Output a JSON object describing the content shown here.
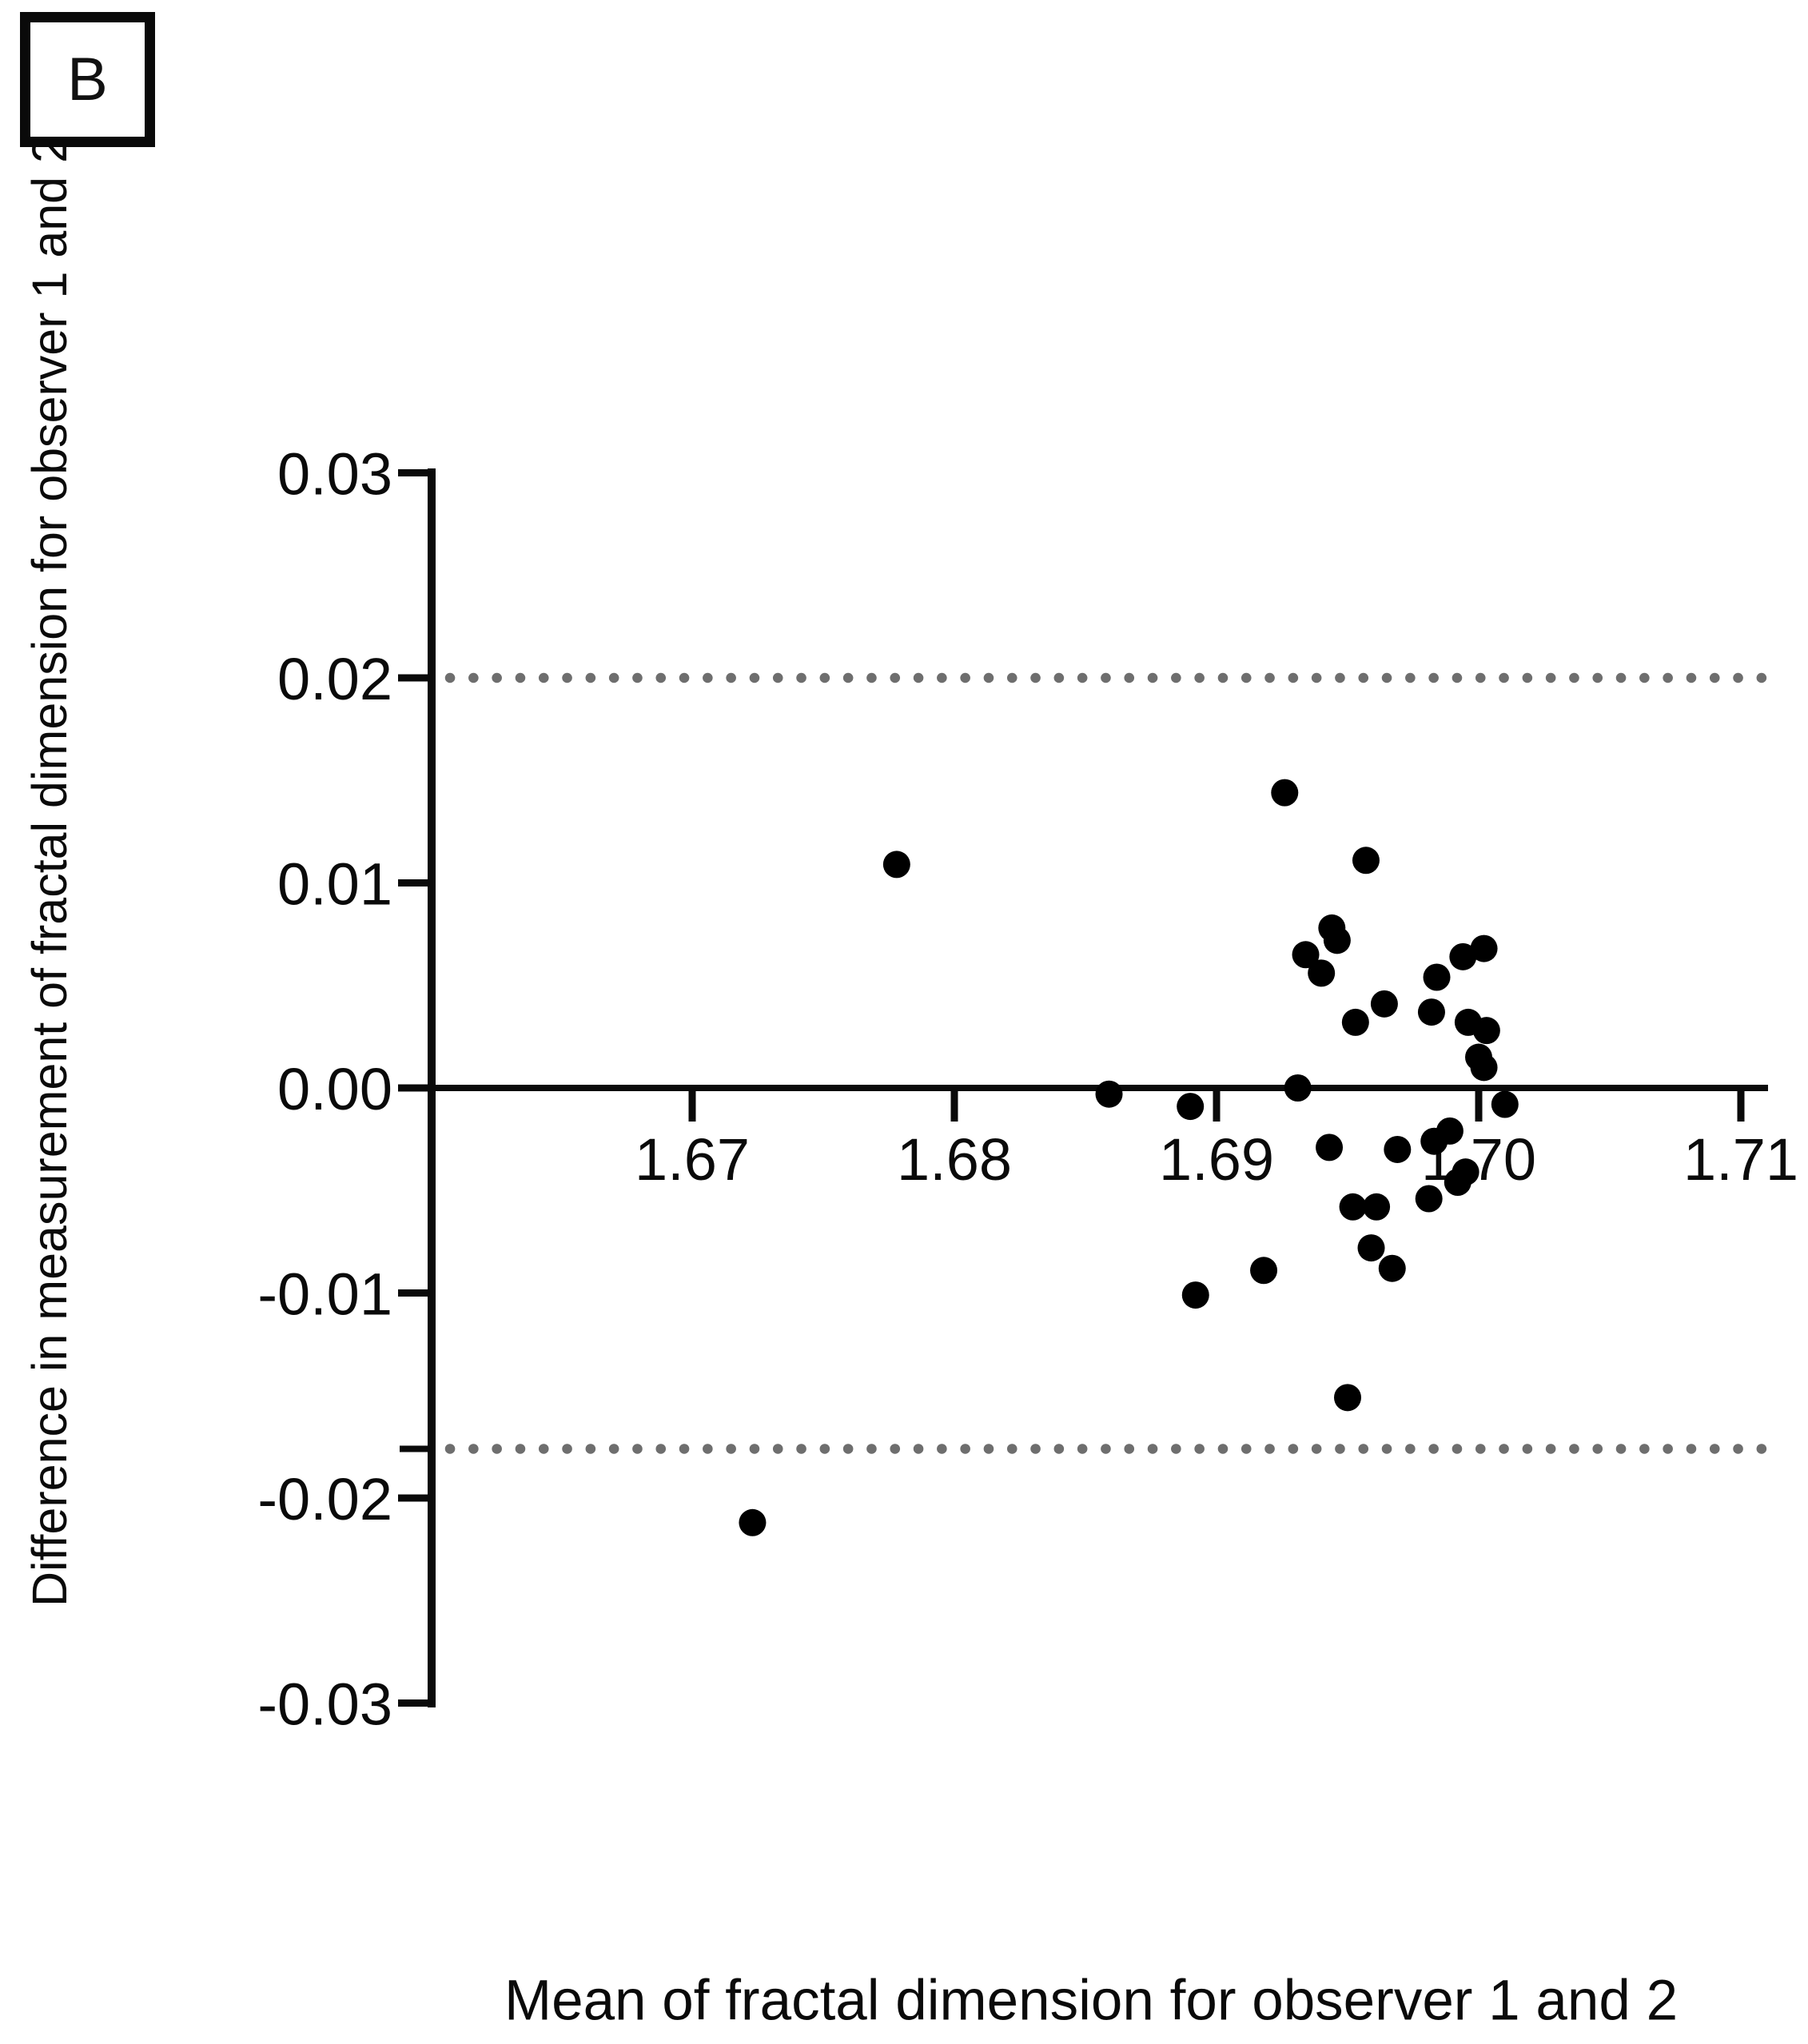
{
  "panel_label": "B",
  "axes": {
    "x": {
      "title": "Mean of fractal dimension for observer 1 and 2",
      "ticks": [
        1.67,
        1.68,
        1.69,
        1.7,
        1.71
      ],
      "tick_labels": [
        "1.67",
        "1.68",
        "1.69",
        "1.70",
        "1.71"
      ]
    },
    "y": {
      "title": "Difference in measurement of fractal dimension for observer 1 and 2",
      "ticks": [
        0.03,
        0.02,
        0.01,
        0.0,
        -0.01,
        -0.02,
        -0.03
      ],
      "tick_labels": [
        "0.03",
        "0.02",
        "0.01",
        "0.00",
        "-0.01",
        "-0.02",
        "-0.03"
      ]
    }
  },
  "chart_data": {
    "type": "scatter",
    "title": "",
    "xlabel": "Mean of fractal dimension for observer 1 and 2",
    "ylabel": "Difference in measurement of fractal dimension for observer 1 and 2",
    "xlim": [
      1.66,
      1.711
    ],
    "ylim": [
      -0.03,
      0.03
    ],
    "grid": false,
    "legend": false,
    "marker": {
      "shape": "circle",
      "color": "#000000",
      "radius_px": 17
    },
    "reference_lines": {
      "zero_line": 0.0,
      "upper_loa": 0.02,
      "lower_loa": -0.0176,
      "loa_style": "dotted",
      "loa_color": "#6e6e6e"
    },
    "points": [
      {
        "x": 1.6778,
        "y": 0.0109
      },
      {
        "x": 1.6723,
        "y": -0.0212
      },
      {
        "x": 1.6926,
        "y": 0.0144
      },
      {
        "x": 1.6957,
        "y": 0.0111
      },
      {
        "x": 1.6944,
        "y": 0.0078
      },
      {
        "x": 1.6946,
        "y": 0.0072
      },
      {
        "x": 1.6934,
        "y": 0.0065
      },
      {
        "x": 1.694,
        "y": 0.0056
      },
      {
        "x": 1.6964,
        "y": 0.0041
      },
      {
        "x": 1.6953,
        "y": 0.0032
      },
      {
        "x": 1.6982,
        "y": 0.0037
      },
      {
        "x": 1.6984,
        "y": 0.0054
      },
      {
        "x": 1.6994,
        "y": 0.0064
      },
      {
        "x": 1.7002,
        "y": 0.0068
      },
      {
        "x": 1.6996,
        "y": 0.0032
      },
      {
        "x": 1.7003,
        "y": 0.0028
      },
      {
        "x": 1.7,
        "y": 0.0015
      },
      {
        "x": 1.7002,
        "y": 0.001
      },
      {
        "x": 1.6931,
        "y": 0.0
      },
      {
        "x": 1.6859,
        "y": -0.0003
      },
      {
        "x": 1.689,
        "y": -0.0009
      },
      {
        "x": 1.701,
        "y": -0.0008
      },
      {
        "x": 1.6943,
        "y": -0.0029
      },
      {
        "x": 1.6969,
        "y": -0.003
      },
      {
        "x": 1.6983,
        "y": -0.0026
      },
      {
        "x": 1.6989,
        "y": -0.0021
      },
      {
        "x": 1.6995,
        "y": -0.0041
      },
      {
        "x": 1.6992,
        "y": -0.0046
      },
      {
        "x": 1.6981,
        "y": -0.0054
      },
      {
        "x": 1.6952,
        "y": -0.0058
      },
      {
        "x": 1.6961,
        "y": -0.0058
      },
      {
        "x": 1.6959,
        "y": -0.0078
      },
      {
        "x": 1.6967,
        "y": -0.0088
      },
      {
        "x": 1.6918,
        "y": -0.0089
      },
      {
        "x": 1.6892,
        "y": -0.0101
      },
      {
        "x": 1.695,
        "y": -0.0151
      }
    ]
  }
}
